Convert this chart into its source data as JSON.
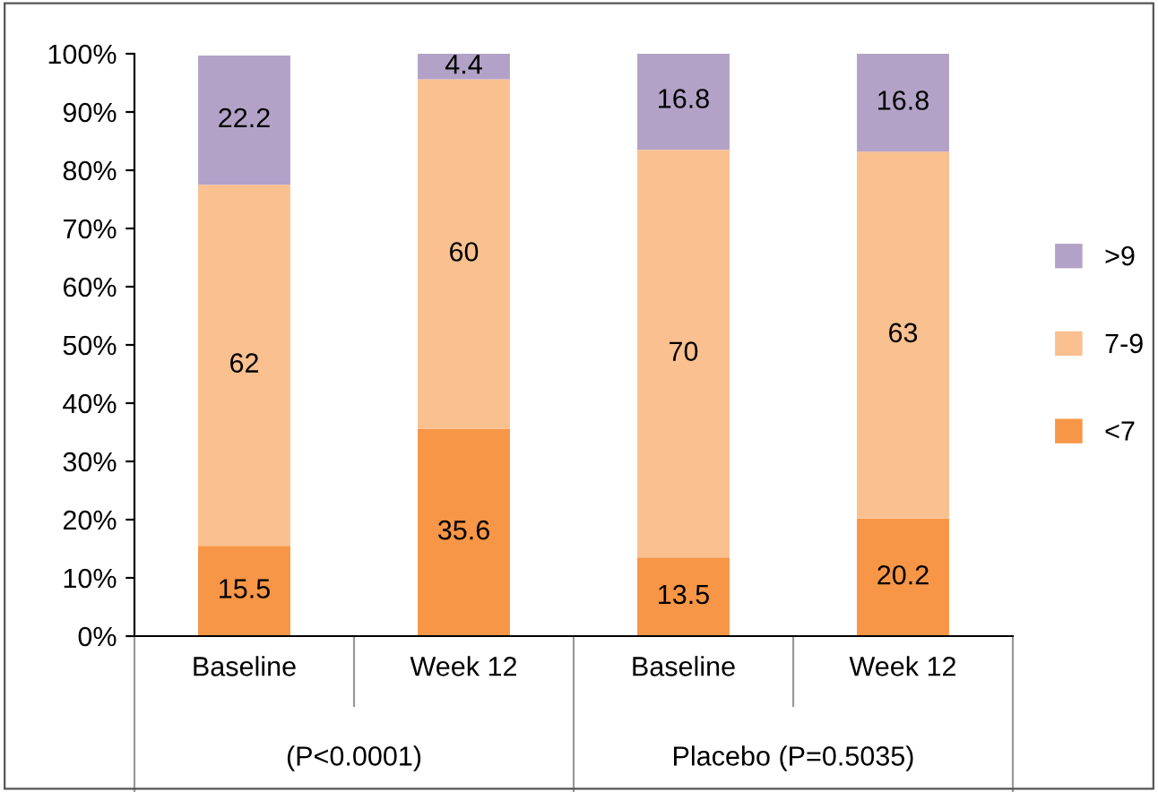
{
  "chart_data": {
    "type": "bar",
    "stacked": true,
    "data_labels": true,
    "grid": false,
    "legend": "right",
    "categories": [
      "Baseline",
      "Week 12",
      "Baseline",
      "Week 12"
    ],
    "series": [
      {
        "name": "<7",
        "color": "#f79646",
        "values": [
          15.5,
          35.6,
          13.5,
          20.2
        ]
      },
      {
        "name": "7-9",
        "color": "#fac08f",
        "values": [
          62,
          60,
          70,
          63
        ]
      },
      {
        "name": ">9",
        "color": "#b3a2c7",
        "values": [
          22.2,
          4.4,
          16.8,
          16.8
        ]
      }
    ],
    "ylim": [
      0,
      100
    ],
    "yticks": [
      {
        "value": 0,
        "label": "0%"
      },
      {
        "value": 10,
        "label": "10%"
      },
      {
        "value": 20,
        "label": "20%"
      },
      {
        "value": 30,
        "label": "30%"
      },
      {
        "value": 40,
        "label": "40%"
      },
      {
        "value": 50,
        "label": "50%"
      },
      {
        "value": 60,
        "label": "60%"
      },
      {
        "value": 70,
        "label": "70%"
      },
      {
        "value": 80,
        "label": "80%"
      },
      {
        "value": 90,
        "label": "90%"
      },
      {
        "value": 100,
        "label": "100%"
      }
    ],
    "annotations": [
      "(P<0.0001)",
      "Placebo (P=0.5035)"
    ]
  }
}
